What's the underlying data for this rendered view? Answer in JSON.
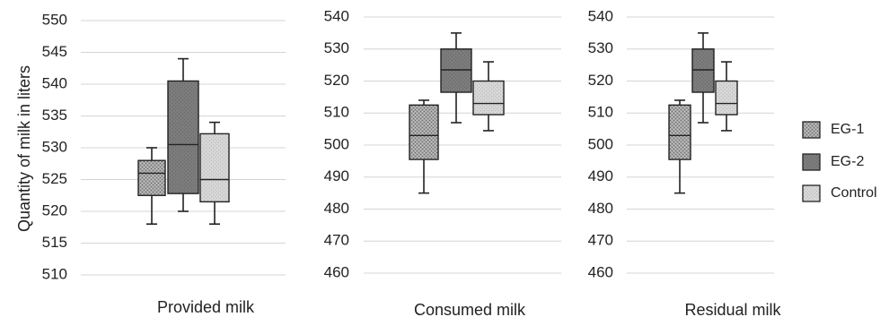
{
  "chart_data": [
    {
      "type": "box",
      "title": "",
      "xlabel": "Provided milk",
      "ylabel": "Quantity of milk in liters",
      "ylim": [
        510,
        550
      ],
      "yticks": [
        510,
        515,
        520,
        525,
        530,
        535,
        540,
        545,
        550
      ],
      "grid": true,
      "series": [
        {
          "name": "EG-1",
          "min": 518,
          "q1": 522.5,
          "median": 526,
          "q3": 528,
          "max": 530
        },
        {
          "name": "EG-2",
          "min": 520,
          "q1": 522.8,
          "median": 530.5,
          "q3": 540.5,
          "max": 544
        },
        {
          "name": "Control",
          "min": 518,
          "q1": 521.5,
          "median": 525,
          "q3": 532.2,
          "max": 534
        }
      ]
    },
    {
      "type": "box",
      "title": "",
      "xlabel": "Consumed milk",
      "ylabel": "",
      "ylim": [
        460,
        540
      ],
      "yticks": [
        460,
        470,
        480,
        490,
        500,
        510,
        520,
        530,
        540
      ],
      "grid": true,
      "series": [
        {
          "name": "EG-1",
          "min": 485,
          "q1": 495.5,
          "median": 503,
          "q3": 512.5,
          "max": 514
        },
        {
          "name": "EG-2",
          "min": 507,
          "q1": 516.5,
          "median": 523.5,
          "q3": 530,
          "max": 535
        },
        {
          "name": "Control",
          "min": 504.5,
          "q1": 509.5,
          "median": 513,
          "q3": 520,
          "max": 526
        }
      ]
    },
    {
      "type": "box",
      "title": "",
      "xlabel": "Residual milk",
      "ylabel": "",
      "ylim": [
        460,
        540
      ],
      "yticks": [
        460,
        470,
        480,
        490,
        500,
        510,
        520,
        530,
        540
      ],
      "grid": true,
      "series": [
        {
          "name": "EG-1",
          "min": 485,
          "q1": 495.5,
          "median": 503,
          "q3": 512.5,
          "max": 514
        },
        {
          "name": "EG-2",
          "min": 507,
          "q1": 516.5,
          "median": 523.5,
          "q3": 530,
          "max": 535
        },
        {
          "name": "Control",
          "min": 504.5,
          "q1": 509.5,
          "median": 513,
          "q3": 520,
          "max": 526
        }
      ]
    }
  ],
  "legend": {
    "placement": "right",
    "items": [
      {
        "label": "EG-1",
        "color": "#9a9a9a",
        "pattern": "dense-hatch"
      },
      {
        "label": "EG-2",
        "color": "#7a7a7a",
        "pattern": "solid-dark"
      },
      {
        "label": "Control",
        "color": "#d2d2d2",
        "pattern": "light-dots"
      }
    ]
  }
}
